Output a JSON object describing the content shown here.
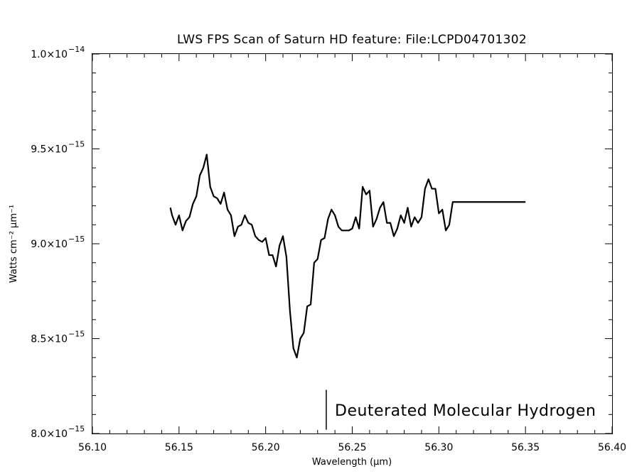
{
  "chart_data": {
    "type": "line",
    "title": "LWS FPS Scan of Saturn HD feature: File:LCPD04701302",
    "xlabel": "Wavelength (μm)",
    "ylabel": "Watts cm⁻² μm⁻¹",
    "xlim": [
      56.1,
      56.4
    ],
    "ylim": [
      8e-15,
      1e-14
    ],
    "x_ticks": [
      {
        "value": 56.1,
        "label": "56.10"
      },
      {
        "value": 56.15,
        "label": "56.15"
      },
      {
        "value": 56.2,
        "label": "56.20"
      },
      {
        "value": 56.25,
        "label": "56.25"
      },
      {
        "value": 56.3,
        "label": "56.30"
      },
      {
        "value": 56.35,
        "label": "56.35"
      },
      {
        "value": 56.4,
        "label": "56.40"
      }
    ],
    "y_ticks": [
      {
        "value": 8e-15,
        "mantissa": "8.0×10",
        "exp": "−15"
      },
      {
        "value": 8.5e-15,
        "mantissa": "8.5×10",
        "exp": "−15"
      },
      {
        "value": 9e-15,
        "mantissa": "9.0×10",
        "exp": "−15"
      },
      {
        "value": 9.5e-15,
        "mantissa": "9.5×10",
        "exp": "−15"
      },
      {
        "value": 1e-14,
        "mantissa": "1.0×10",
        "exp": "−14"
      }
    ],
    "grid": false,
    "line_color": "#000000",
    "series": [
      {
        "x": [
          56.145,
          56.146,
          56.148,
          56.15,
          56.152,
          56.154,
          56.156,
          56.158,
          56.16,
          56.162,
          56.164,
          56.166,
          56.168,
          56.17,
          56.172,
          56.174,
          56.176,
          56.178,
          56.18,
          56.182,
          56.184,
          56.186,
          56.188,
          56.19,
          56.192,
          56.194,
          56.196,
          56.198,
          56.2,
          56.202,
          56.204,
          56.206,
          56.208,
          56.21,
          56.212,
          56.214,
          56.216,
          56.218,
          56.22,
          56.222,
          56.224,
          56.226,
          56.228,
          56.23,
          56.232,
          56.234,
          56.236,
          56.238,
          56.24,
          56.242,
          56.244,
          56.246,
          56.248,
          56.25,
          56.252,
          56.254,
          56.256,
          56.258,
          56.26,
          56.262,
          56.264,
          56.266,
          56.268,
          56.27,
          56.272,
          56.274,
          56.276,
          56.278,
          56.28,
          56.282,
          56.284,
          56.286,
          56.288,
          56.29,
          56.292,
          56.294,
          56.296,
          56.298,
          56.3,
          56.302,
          56.304,
          56.306,
          56.308,
          56.31,
          56.312,
          56.314,
          56.316,
          56.318,
          56.32,
          56.322,
          56.324,
          56.326,
          56.328,
          56.33,
          56.332,
          56.334,
          56.336,
          56.338,
          56.34,
          56.342,
          56.344,
          56.346,
          56.348,
          56.35
        ],
        "y": [
          9.19e-15,
          9.15e-15,
          9.1e-15,
          9.15e-15,
          9.07e-15,
          9.12e-15,
          9.14e-15,
          9.21e-15,
          9.25e-15,
          9.36e-15,
          9.4e-15,
          9.47e-15,
          9.3e-15,
          9.25e-15,
          9.24e-15,
          9.21e-15,
          9.27e-15,
          9.18e-15,
          9.15e-15,
          9.04e-15,
          9.09e-15,
          9.1e-15,
          9.15e-15,
          9.11e-15,
          9.1e-15,
          9.04e-15,
          9.02e-15,
          9.01e-15,
          9.03e-15,
          8.94e-15,
          8.94e-15,
          8.88e-15,
          8.99e-15,
          9.04e-15,
          8.93e-15,
          8.65e-15,
          8.45e-15,
          8.4e-15,
          8.5e-15,
          8.53e-15,
          8.67e-15,
          8.68e-15,
          8.9e-15,
          8.92e-15,
          9.02e-15,
          9.03e-15,
          9.13e-15,
          9.18e-15,
          9.15e-15,
          9.09e-15,
          9.07e-15,
          9.07e-15,
          9.07e-15,
          9.08e-15,
          9.14e-15,
          9.08e-15,
          9.3e-15,
          9.26e-15,
          9.28e-15,
          9.09e-15,
          9.13e-15,
          9.19e-15,
          9.22e-15,
          9.11e-15,
          9.11e-15,
          9.04e-15,
          9.08e-15,
          9.15e-15,
          9.11e-15,
          9.19e-15,
          9.09e-15,
          9.14e-15,
          9.11e-15,
          9.14e-15,
          9.29e-15,
          9.34e-15,
          9.29e-15,
          9.29e-15,
          9.16e-15,
          9.18e-15,
          9.07e-15,
          9.1e-15,
          9.22e-15,
          9.22e-15,
          9.22e-15,
          9.22e-15,
          9.22e-15,
          9.22e-15,
          9.22e-15,
          9.22e-15,
          9.22e-15,
          9.22e-15,
          9.22e-15,
          9.22e-15,
          9.22e-15,
          9.22e-15,
          9.22e-15,
          9.22e-15,
          9.22e-15,
          9.22e-15,
          9.22e-15,
          9.22e-15,
          9.22e-15,
          9.22e-15
        ]
      }
    ],
    "annotation": {
      "text": "Deuterated Molecular Hydrogen",
      "marker_x": 56.235,
      "marker_y_range": [
        8.02e-15,
        8.23e-15
      ]
    }
  }
}
